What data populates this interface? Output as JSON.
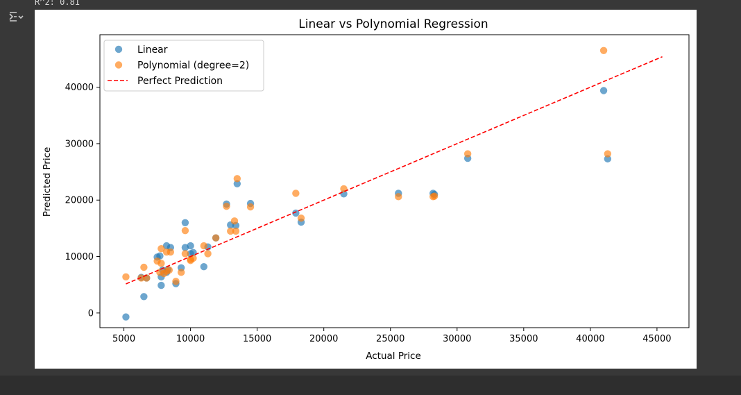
{
  "output": {
    "text": "R^2: 0.81"
  },
  "toolbar": {
    "icon": "output-toggle-icon"
  },
  "chart_data": {
    "type": "scatter",
    "title": "Linear vs Polynomial Regression",
    "xlabel": "Actual Price",
    "ylabel": "Predicted Price",
    "xlim": [
      3200,
      47400
    ],
    "ylim": [
      -2600,
      49300
    ],
    "xticks": [
      5000,
      10000,
      15000,
      20000,
      25000,
      30000,
      35000,
      40000,
      45000
    ],
    "xtick_labels": [
      "5000",
      "10000",
      "15000",
      "20000",
      "25000",
      "30000",
      "35000",
      "40000",
      "45000"
    ],
    "yticks": [
      0,
      10000,
      20000,
      30000,
      40000
    ],
    "ytick_labels": [
      "0",
      "10000",
      "20000",
      "30000",
      "40000"
    ],
    "grid": false,
    "legend_position": "top-left",
    "series": [
      {
        "name": "Linear",
        "kind": "scatter",
        "color": "#1f77b4",
        "points": [
          [
            5150,
            -700
          ],
          [
            6500,
            2900
          ],
          [
            6300,
            6300
          ],
          [
            6700,
            6200
          ],
          [
            7500,
            9900
          ],
          [
            7700,
            10100
          ],
          [
            7800,
            6400
          ],
          [
            7800,
            4900
          ],
          [
            8200,
            7200
          ],
          [
            8200,
            11900
          ],
          [
            8500,
            11600
          ],
          [
            8900,
            5200
          ],
          [
            9300,
            8000
          ],
          [
            9600,
            16000
          ],
          [
            9600,
            11600
          ],
          [
            10000,
            11900
          ],
          [
            10000,
            10500
          ],
          [
            10200,
            10700
          ],
          [
            11000,
            8200
          ],
          [
            11300,
            11700
          ],
          [
            11900,
            13300
          ],
          [
            12700,
            19300
          ],
          [
            13000,
            15600
          ],
          [
            13400,
            15500
          ],
          [
            13500,
            22900
          ],
          [
            14500,
            19400
          ],
          [
            17900,
            17700
          ],
          [
            18300,
            16100
          ],
          [
            21500,
            21100
          ],
          [
            25600,
            21200
          ],
          [
            28200,
            21200
          ],
          [
            28300,
            21000
          ],
          [
            30800,
            27400
          ],
          [
            41000,
            39400
          ],
          [
            41300,
            27300
          ],
          [
            7900,
            7600
          ],
          [
            8300,
            7700
          ]
        ]
      },
      {
        "name": "Polynomial (degree=2)",
        "kind": "scatter",
        "color": "#ff7f0e",
        "points": [
          [
            5150,
            6400
          ],
          [
            6300,
            6200
          ],
          [
            6500,
            8100
          ],
          [
            6700,
            6200
          ],
          [
            7500,
            9200
          ],
          [
            7700,
            7200
          ],
          [
            7800,
            11400
          ],
          [
            7800,
            8800
          ],
          [
            8200,
            7400
          ],
          [
            8200,
            10800
          ],
          [
            8500,
            10800
          ],
          [
            8900,
            5600
          ],
          [
            9300,
            7200
          ],
          [
            9600,
            14600
          ],
          [
            9600,
            10500
          ],
          [
            10000,
            9500
          ],
          [
            10000,
            9300
          ],
          [
            10200,
            9700
          ],
          [
            11000,
            11900
          ],
          [
            11300,
            10500
          ],
          [
            11900,
            13300
          ],
          [
            12700,
            18900
          ],
          [
            13000,
            14500
          ],
          [
            13300,
            16300
          ],
          [
            13400,
            14500
          ],
          [
            13500,
            23800
          ],
          [
            14500,
            18800
          ],
          [
            17900,
            21200
          ],
          [
            18300,
            16800
          ],
          [
            21500,
            22000
          ],
          [
            25600,
            20600
          ],
          [
            28200,
            20600
          ],
          [
            28300,
            20700
          ],
          [
            30800,
            28200
          ],
          [
            41000,
            46500
          ],
          [
            41300,
            28200
          ],
          [
            8000,
            7000
          ],
          [
            8400,
            7600
          ]
        ]
      },
      {
        "name": "Perfect Prediction",
        "kind": "line",
        "style": "dashed",
        "color": "#ff0000",
        "points": [
          [
            5150,
            5150
          ],
          [
            45400,
            45400
          ]
        ]
      }
    ]
  }
}
